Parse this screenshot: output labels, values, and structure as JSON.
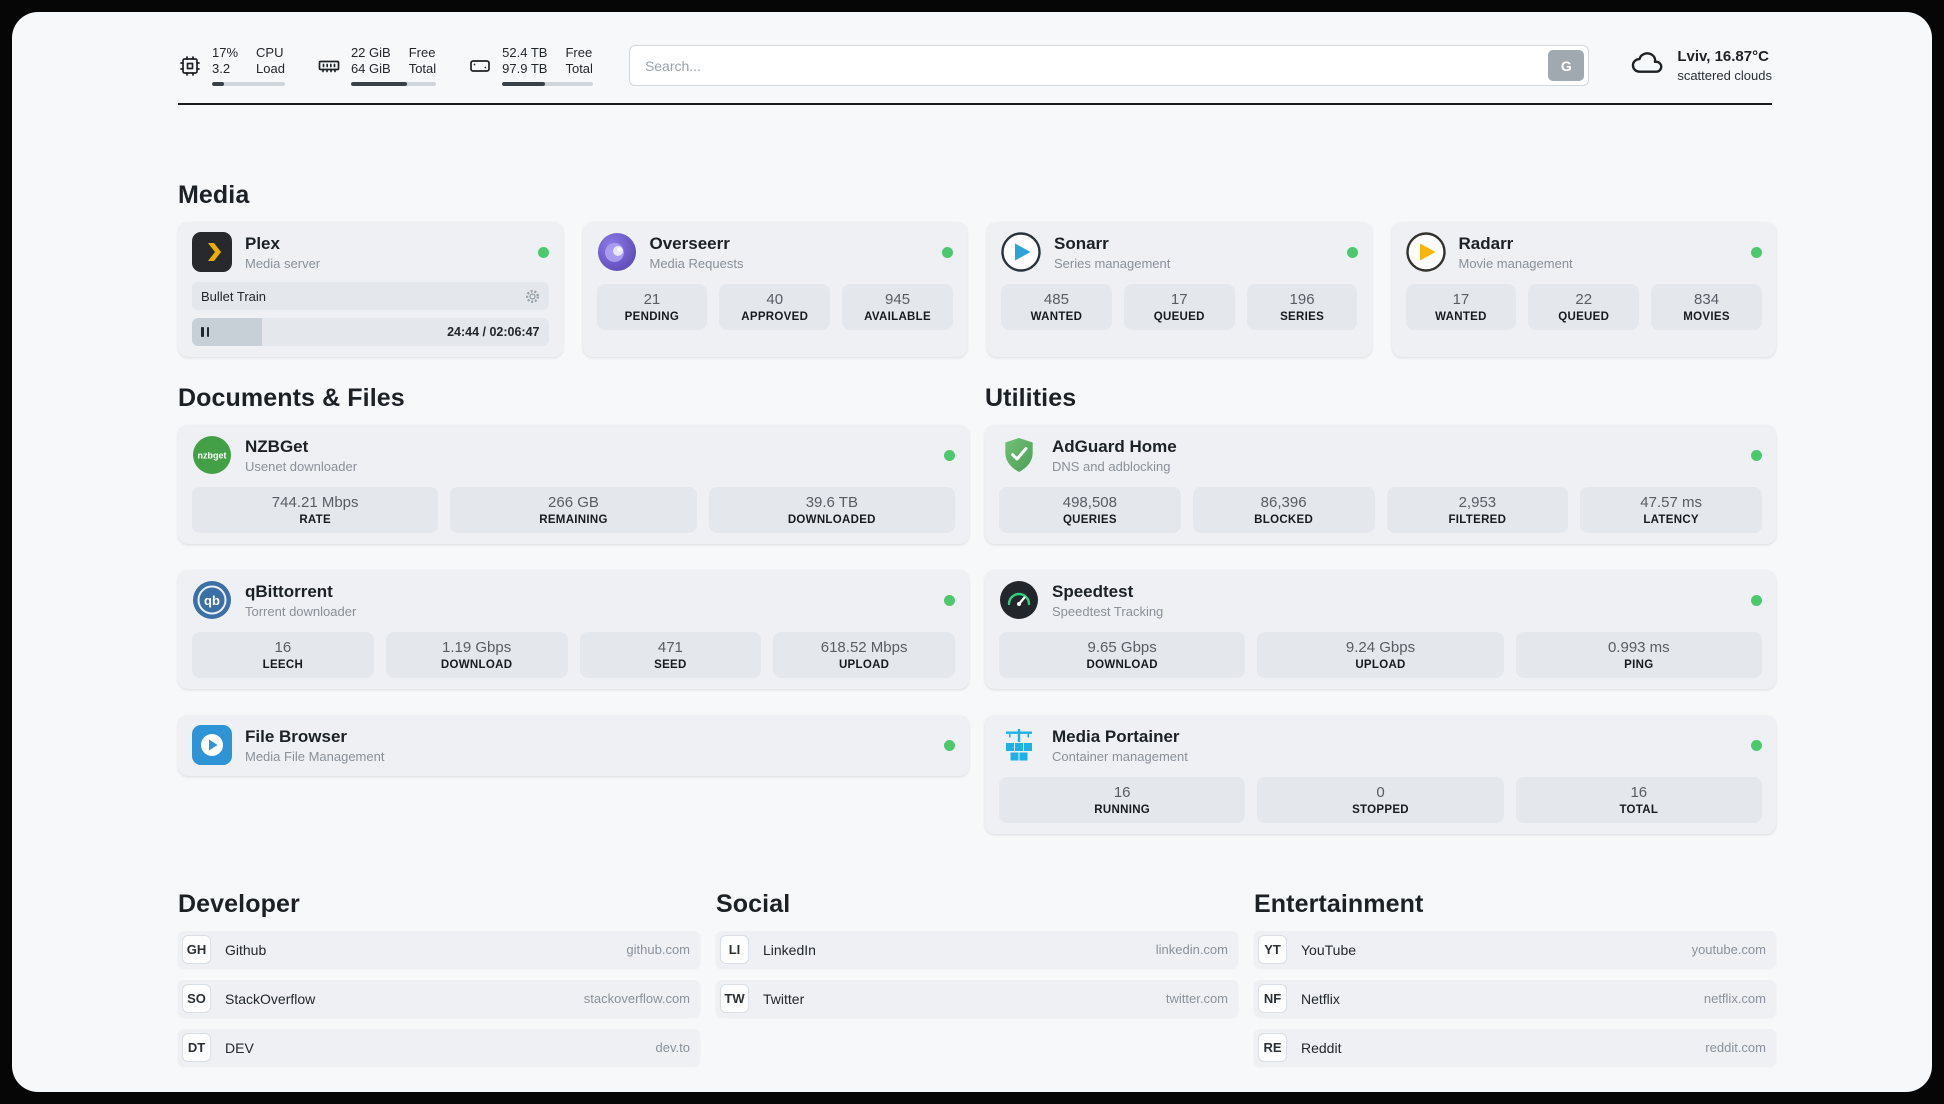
{
  "colors": {
    "status_online": "#4cc96e",
    "page_background": "#f7f8fa",
    "card_background": "#eef0f3",
    "statbox_background": "#e4e8ec",
    "progress_fill": "#3a4148"
  },
  "header": {
    "cpu": {
      "icon": "cpu-icon",
      "values": [
        "17%",
        "3.2"
      ],
      "labels": [
        "CPU",
        "Load"
      ],
      "percent": 17
    },
    "ram": {
      "icon": "ram-icon",
      "values": [
        "22 GiB",
        "64 GiB"
      ],
      "labels": [
        "Free",
        "Total"
      ],
      "percent": 66
    },
    "disk": {
      "icon": "disk-icon",
      "values": [
        "52.4 TB",
        "97.9 TB"
      ],
      "labels": [
        "Free",
        "Total"
      ],
      "percent": 47
    },
    "search": {
      "placeholder": "Search...",
      "button_label": "G"
    },
    "weather": {
      "icon": "cloud-icon",
      "location": "Lviv, 16.87°C",
      "condition": "scattered clouds"
    }
  },
  "sections": {
    "media": {
      "title": "Media",
      "apps": [
        {
          "icon": "plex-icon",
          "name": "Plex",
          "subtitle": "Media server",
          "status": "online",
          "now_playing": {
            "title": "Bullet Train",
            "time_display": "24:44 / 02:06:47",
            "progress_percent": 19.5
          }
        },
        {
          "icon": "overseerr-icon",
          "name": "Overseerr",
          "subtitle": "Media Requests",
          "status": "online",
          "stats": [
            {
              "value": "21",
              "label": "PENDING"
            },
            {
              "value": "40",
              "label": "APPROVED"
            },
            {
              "value": "945",
              "label": "AVAILABLE"
            }
          ]
        },
        {
          "icon": "sonarr-icon",
          "name": "Sonarr",
          "subtitle": "Series management",
          "status": "online",
          "stats": [
            {
              "value": "485",
              "label": "WANTED"
            },
            {
              "value": "17",
              "label": "QUEUED"
            },
            {
              "value": "196",
              "label": "SERIES"
            }
          ]
        },
        {
          "icon": "radarr-icon",
          "name": "Radarr",
          "subtitle": "Movie management",
          "status": "online",
          "stats": [
            {
              "value": "17",
              "label": "WANTED"
            },
            {
              "value": "22",
              "label": "QUEUED"
            },
            {
              "value": "834",
              "label": "MOVIES"
            }
          ]
        }
      ]
    },
    "documents": {
      "title": "Documents & Files",
      "apps": [
        {
          "icon": "nzbget-icon",
          "name": "NZBGet",
          "subtitle": "Usenet downloader",
          "status": "online",
          "stats": [
            {
              "value": "744.21 Mbps",
              "label": "RATE"
            },
            {
              "value": "266 GB",
              "label": "REMAINING"
            },
            {
              "value": "39.6 TB",
              "label": "DOWNLOADED"
            }
          ]
        },
        {
          "icon": "qbittorrent-icon",
          "name": "qBittorrent",
          "subtitle": "Torrent downloader",
          "status": "online",
          "stats": [
            {
              "value": "16",
              "label": "LEECH"
            },
            {
              "value": "1.19 Gbps",
              "label": "DOWNLOAD"
            },
            {
              "value": "471",
              "label": "SEED"
            },
            {
              "value": "618.52 Mbps",
              "label": "UPLOAD"
            }
          ]
        },
        {
          "icon": "filebrowser-icon",
          "name": "File Browser",
          "subtitle": "Media File Management",
          "status": "online"
        }
      ]
    },
    "utilities": {
      "title": "Utilities",
      "apps": [
        {
          "icon": "adguard-icon",
          "name": "AdGuard Home",
          "subtitle": "DNS and adblocking",
          "status": "online",
          "stats": [
            {
              "value": "498,508",
              "label": "QUERIES"
            },
            {
              "value": "86,396",
              "label": "BLOCKED"
            },
            {
              "value": "2,953",
              "label": "FILTERED"
            },
            {
              "value": "47.57 ms",
              "label": "LATENCY"
            }
          ]
        },
        {
          "icon": "speedtest-icon",
          "name": "Speedtest",
          "subtitle": "Speedtest Tracking",
          "status": "online",
          "stats": [
            {
              "value": "9.65 Gbps",
              "label": "DOWNLOAD"
            },
            {
              "value": "9.24 Gbps",
              "label": "UPLOAD"
            },
            {
              "value": "0.993 ms",
              "label": "PING"
            }
          ]
        },
        {
          "icon": "portainer-icon",
          "name": "Media Portainer",
          "subtitle": "Container management",
          "status": "online",
          "stats": [
            {
              "value": "16",
              "label": "RUNNING"
            },
            {
              "value": "0",
              "label": "STOPPED"
            },
            {
              "value": "16",
              "label": "TOTAL"
            }
          ]
        }
      ]
    }
  },
  "bookmarks": [
    {
      "title": "Developer",
      "items": [
        {
          "badge": "GH",
          "label": "Github",
          "url": "github.com"
        },
        {
          "badge": "SO",
          "label": "StackOverflow",
          "url": "stackoverflow.com"
        },
        {
          "badge": "DT",
          "label": "DEV",
          "url": "dev.to"
        }
      ]
    },
    {
      "title": "Social",
      "items": [
        {
          "badge": "LI",
          "label": "LinkedIn",
          "url": "linkedin.com"
        },
        {
          "badge": "TW",
          "label": "Twitter",
          "url": "twitter.com"
        }
      ]
    },
    {
      "title": "Entertainment",
      "items": [
        {
          "badge": "YT",
          "label": "YouTube",
          "url": "youtube.com"
        },
        {
          "badge": "NF",
          "label": "Netflix",
          "url": "netflix.com"
        },
        {
          "badge": "RE",
          "label": "Reddit",
          "url": "reddit.com"
        }
      ]
    }
  ]
}
